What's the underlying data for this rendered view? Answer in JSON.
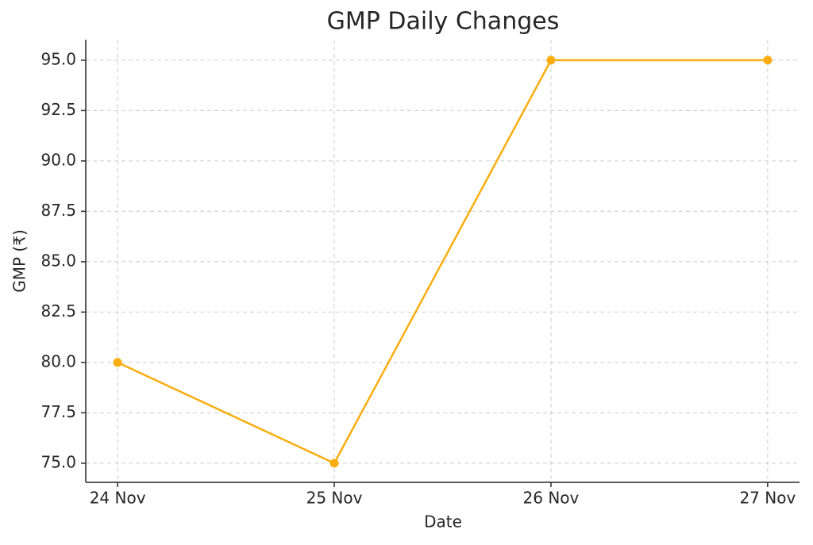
{
  "chart_data": {
    "type": "line",
    "title": "GMP Daily Changes",
    "x_label": "Date",
    "y_label": "GMP (₹)",
    "categories": [
      "24 Nov",
      "25 Nov",
      "26 Nov",
      "27 Nov"
    ],
    "values": [
      80,
      75,
      95,
      95
    ],
    "color": "#f9ad0f",
    "ylim": [
      74.05,
      96.02
    ],
    "yticks": [
      {
        "value": 75,
        "label": "75.0"
      },
      77.5,
      {
        "value": 80,
        "label": "80.0"
      },
      82.5,
      {
        "value": 85,
        "label": "85.0"
      },
      87.5,
      {
        "value": 90,
        "label": "90.0"
      },
      92.5,
      {
        "value": 95,
        "label": "95.0"
      }
    ],
    "grid": true
  }
}
